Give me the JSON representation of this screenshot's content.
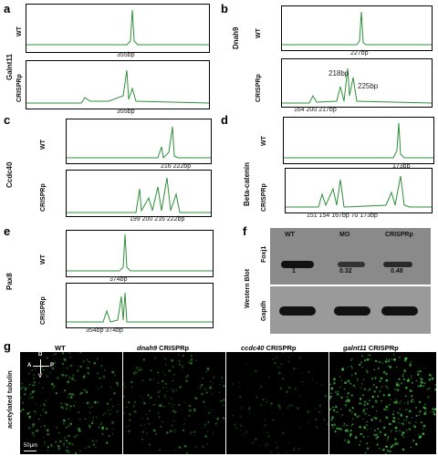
{
  "panels": {
    "a": {
      "letter": "a",
      "gene": "Galnt11",
      "wt": "WT",
      "crispr": "CRISPRp",
      "wt_note": "355bp",
      "crispr_note": "355bp"
    },
    "b": {
      "letter": "b",
      "gene": "Dnah9",
      "wt": "WT",
      "crispr": "CRISPRp",
      "wt_note": "227bp",
      "crispr_note_1": "218bp",
      "crispr_note_2": "225bp",
      "crispr_note_3": "164 200 217bp"
    },
    "c": {
      "letter": "c",
      "gene": "Ccdc40",
      "wt": "WT",
      "crispr": "CRISPRp",
      "wt_note": "216 222bp",
      "crispr_note": "199 200 216 222bp"
    },
    "d": {
      "letter": "d",
      "gene": "Beta-catenin",
      "wt": "WT",
      "crispr": "CRISPRp",
      "wt_note": "173bp",
      "crispr_note": "151 154 167bp  70 173bp"
    },
    "e": {
      "letter": "e",
      "gene": "Pax8",
      "wt": "WT",
      "crispr": "CRISPRp",
      "wt_note": "374bp",
      "crispr_note": "354bp  374bp"
    },
    "f": {
      "letter": "f",
      "side_label": "Western Blot",
      "columns": [
        "WT",
        "MO",
        "CRISPRp"
      ],
      "rows": [
        {
          "protein": "Foxj1",
          "values": [
            "1",
            "0.32",
            "0.48"
          ]
        },
        {
          "protein": "Gapdh",
          "values": []
        }
      ]
    },
    "g": {
      "letter": "g",
      "stain": "acetylated tubulin",
      "scale": "50μm",
      "axes": {
        "d": "D",
        "v": "V",
        "a": "A",
        "p": "P"
      },
      "images": [
        {
          "gene": "",
          "suffix": "WT"
        },
        {
          "gene": "dnah9",
          "suffix": " CRISPRp"
        },
        {
          "gene": "ccdc40",
          "suffix": " CRISPRp"
        },
        {
          "gene": "galnt11",
          "suffix": " CRISPRp"
        }
      ]
    }
  }
}
